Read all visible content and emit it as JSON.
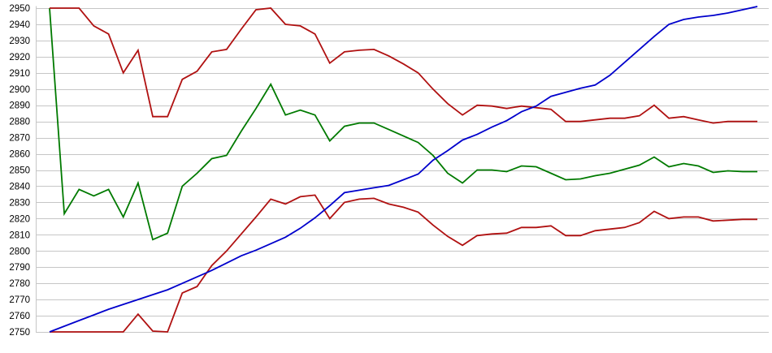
{
  "page": {
    "background": "#ffffff",
    "gridline_color": "#c6c6c6",
    "axis_line_color": "#c6c6c6",
    "tick_label_color": "#000000"
  },
  "chart_data": {
    "type": "line",
    "title": "",
    "xlabel": "",
    "ylabel": "",
    "x_count": 49,
    "ylim": [
      2750,
      2950
    ],
    "ytick_step": 10,
    "ytick_labels": [
      "2950",
      "2940",
      "2930",
      "2920",
      "2910",
      "2900",
      "2890",
      "2880",
      "2870",
      "2860",
      "2850",
      "2840",
      "2830",
      "2820",
      "2810",
      "2800",
      "2790",
      "2780",
      "2770",
      "2760",
      "2750"
    ],
    "grid": "horizontal-only",
    "legend": "none",
    "x_axis_labels": "none",
    "series": [
      {
        "name": "green-line",
        "color": "#007a00",
        "values": [
          2950,
          2823,
          2838,
          2834,
          2838,
          2821,
          2842,
          2807,
          2811,
          2840,
          2848,
          2857,
          2859,
          2874,
          2888,
          2903,
          2884,
          2887,
          2884,
          2868,
          2877,
          2879,
          2879,
          2875,
          2871,
          2867,
          2859,
          2848,
          2842,
          2850,
          2850,
          2849,
          2852.5,
          2852,
          2848,
          2844,
          2844.5,
          2846.5,
          2848,
          2850.5,
          2853,
          2858,
          2852,
          2854,
          2852.5,
          2848.5,
          2849.5,
          2849,
          2849
        ]
      },
      {
        "name": "upper-red-line",
        "color": "#b01111",
        "values": [
          2950,
          2950,
          2950,
          2939,
          2934,
          2910,
          2924,
          2883,
          2883,
          2906,
          2911,
          2923,
          2924.5,
          2937,
          2949,
          2950,
          2940,
          2939,
          2934,
          2916,
          2923,
          2924,
          2924.5,
          2920.5,
          2915.5,
          2910,
          2900,
          2891,
          2884,
          2890,
          2889.5,
          2888,
          2889.5,
          2888.5,
          2887.5,
          2880,
          2880,
          2881,
          2882,
          2882,
          2883.5,
          2890,
          2882,
          2883,
          2881,
          2879,
          2880,
          2880,
          2880
        ]
      },
      {
        "name": "lower-red-line",
        "color": "#b01111",
        "values": [
          2750,
          2750,
          2750,
          2750,
          2750,
          2750,
          2761,
          2750.5,
          2750,
          2774,
          2778,
          2791,
          2800,
          2810.5,
          2821,
          2832,
          2829,
          2833.5,
          2834.5,
          2820,
          2830,
          2832,
          2832.5,
          2829,
          2827,
          2824,
          2816,
          2809,
          2803.5,
          2809.5,
          2810.5,
          2811,
          2814.5,
          2814.5,
          2815.5,
          2809.5,
          2809.5,
          2812.5,
          2813.5,
          2814.5,
          2817.5,
          2824.5,
          2820,
          2821,
          2821,
          2818.5,
          2819,
          2819.5,
          2819.5
        ]
      },
      {
        "name": "blue-line",
        "color": "#0000cc",
        "values": [
          2750,
          2753.5,
          2757,
          2760.5,
          2764,
          2767,
          2770,
          2773,
          2776,
          2780,
          2784,
          2788,
          2792.5,
          2797,
          2800.5,
          2804.5,
          2808.5,
          2814,
          2820.5,
          2828,
          2836,
          2837.5,
          2839,
          2840.5,
          2844,
          2847.5,
          2856,
          2862,
          2868.5,
          2872,
          2876.5,
          2880.5,
          2886,
          2889.5,
          2895.5,
          2898,
          2900.5,
          2902.5,
          2908.5,
          2916.5,
          2924.5,
          2932.5,
          2940,
          2943,
          2944.5,
          2945.5,
          2947,
          2949,
          2951
        ]
      }
    ]
  }
}
